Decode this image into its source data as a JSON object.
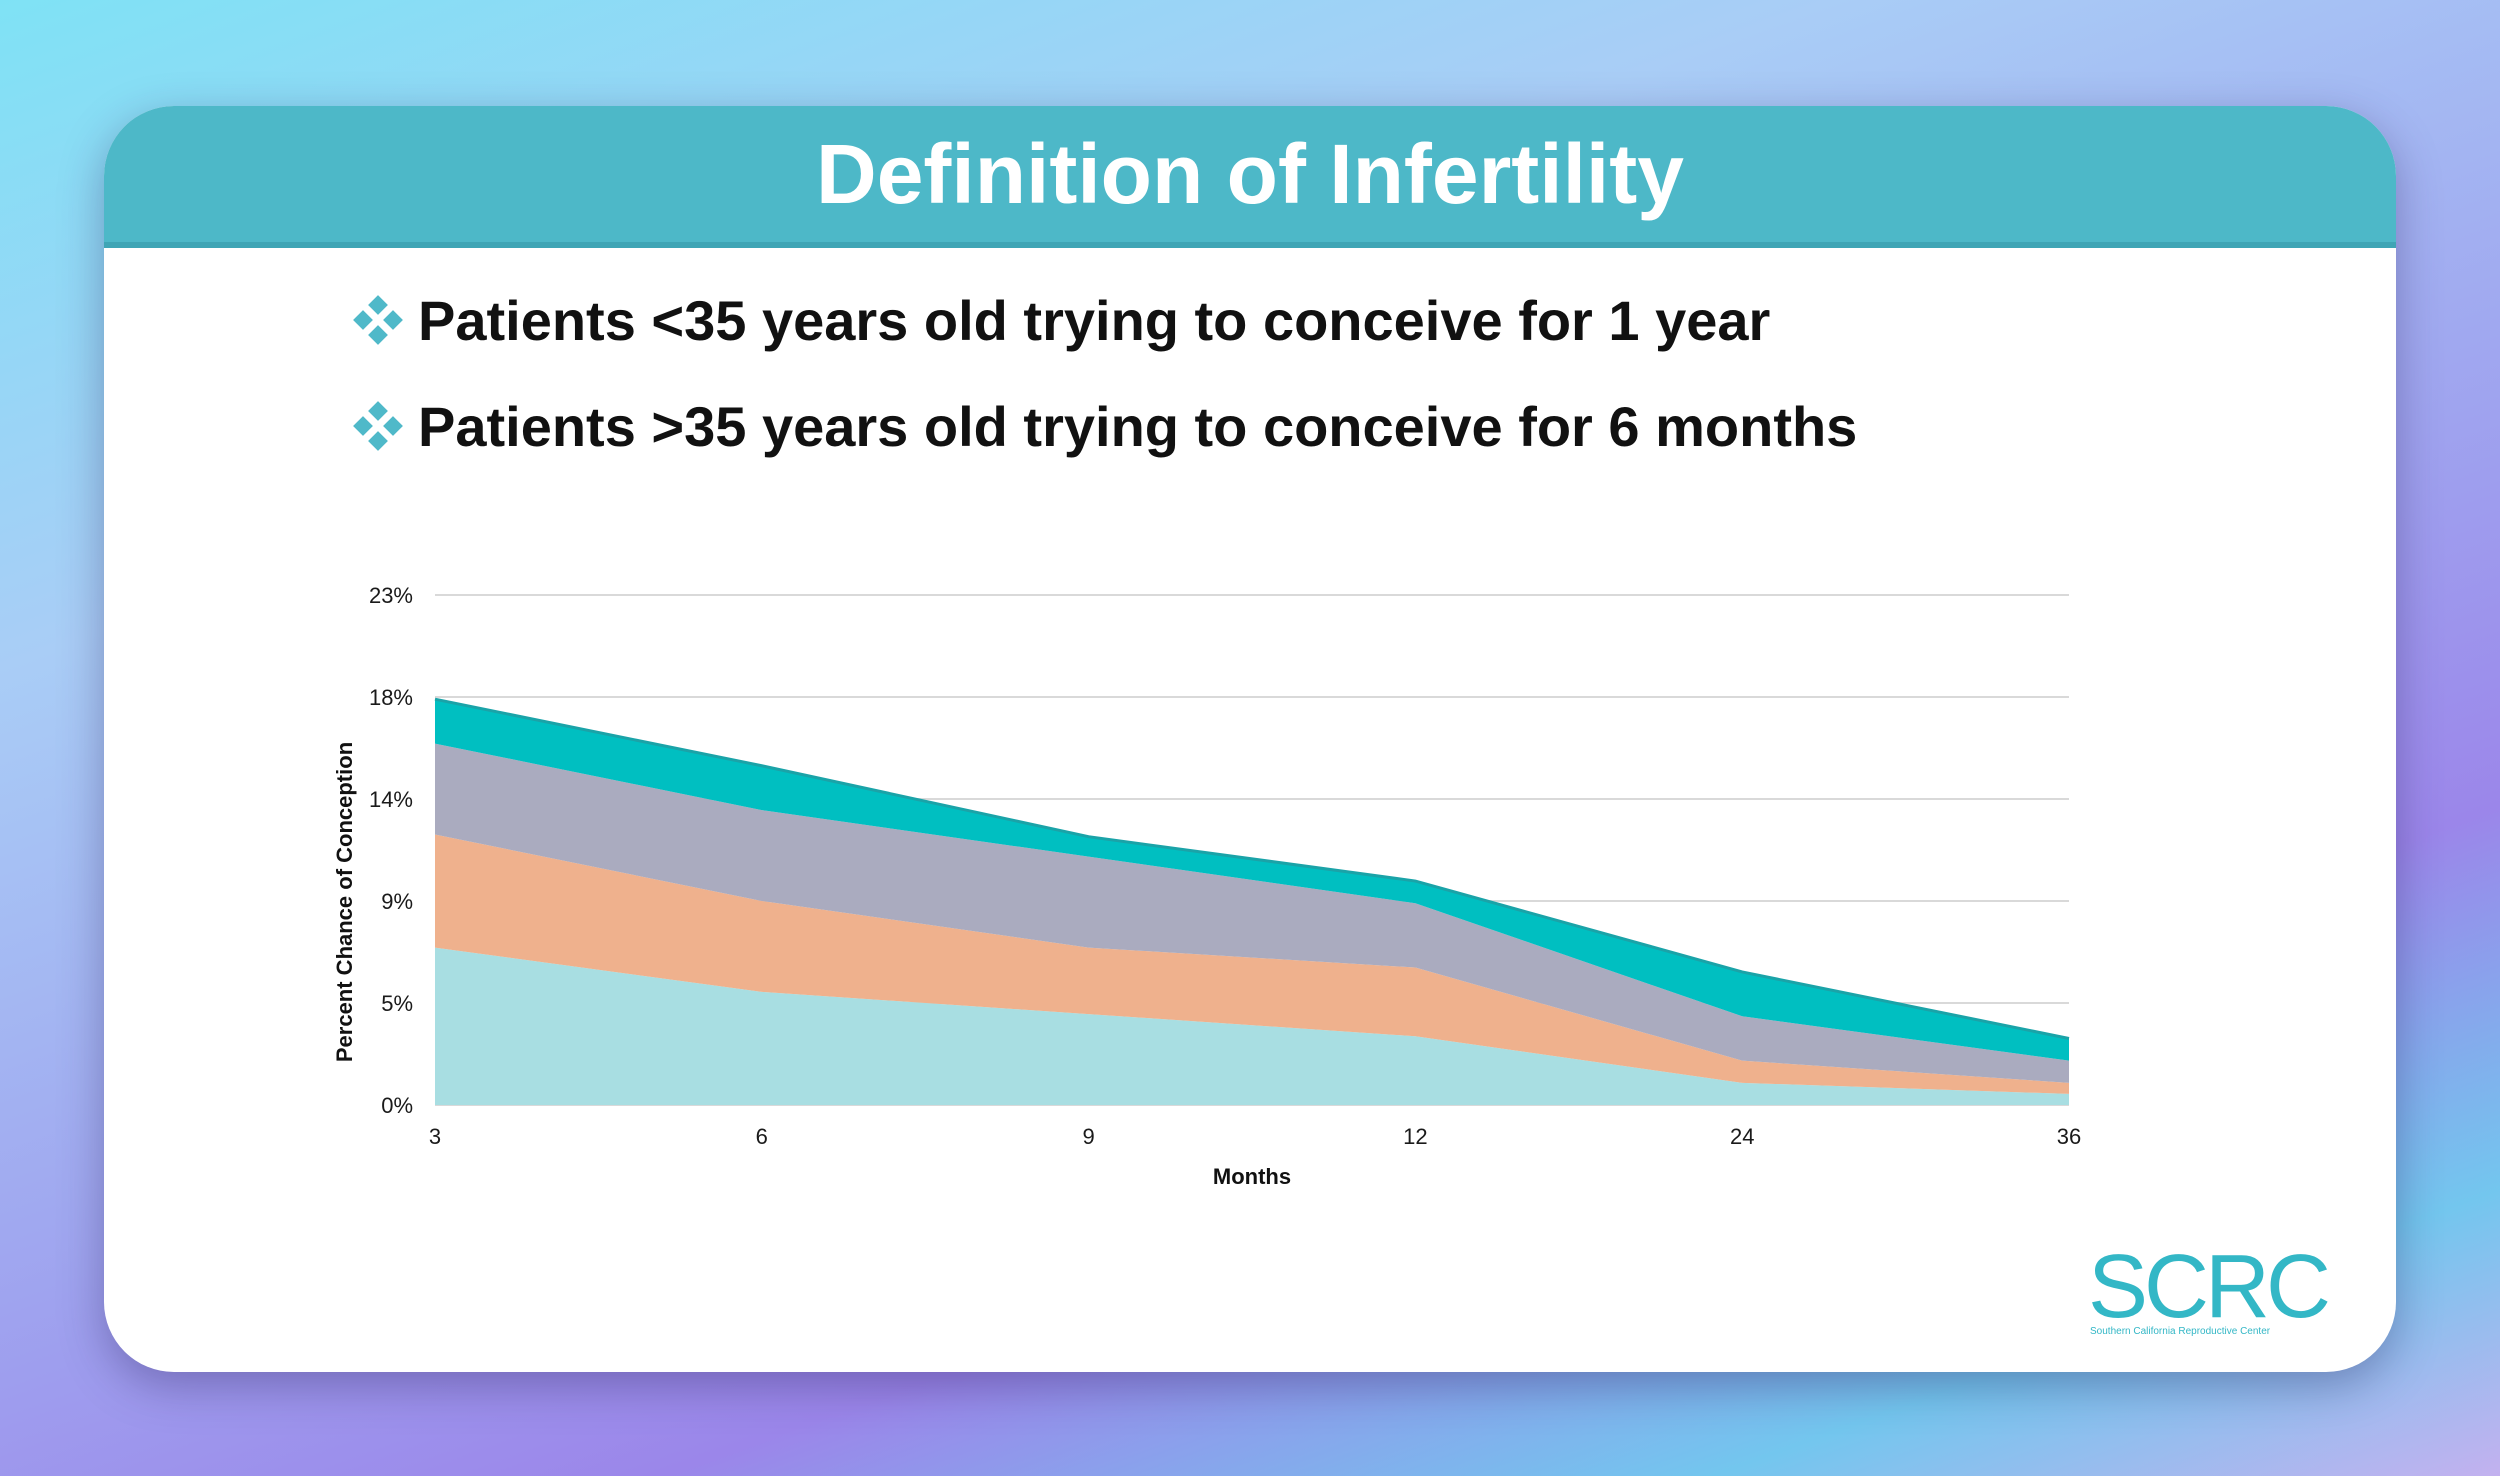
{
  "slide": {
    "title": "Definition of Infertility",
    "bullets": [
      "Patients <35 years old trying to conceive for 1 year",
      "Patients >35 years old trying to conceive for 6 months"
    ],
    "bullet_icon": "diamond-bullet-icon"
  },
  "logo": {
    "text": "SCRC",
    "subtitle": "Southern California Reproductive Center"
  },
  "colors": {
    "header": "#4db8c8",
    "bullet_icon": "#4fb9c9",
    "logo": "#33b7c6",
    "series": [
      "#a8dee2",
      "#efb18d",
      "#aaabbf",
      "#00bfc1"
    ]
  },
  "chart_data": {
    "type": "area",
    "stacked": true,
    "categories": [
      "3",
      "6",
      "9",
      "12",
      "24",
      "36"
    ],
    "xlabel": "Months",
    "ylabel": "Percent Chance of Conception",
    "yticks": [
      "0%",
      "5%",
      "9%",
      "14%",
      "18%",
      "23%"
    ],
    "ylim": [
      0,
      23
    ],
    "grid": true,
    "legend": "none",
    "series": [
      {
        "values": [
          7.1,
          5.1,
          4.1,
          3.1,
          1.0,
          0.5
        ],
        "color": "#a8dee2"
      },
      {
        "values": [
          5.1,
          4.1,
          3.0,
          3.1,
          1.0,
          0.5
        ],
        "color": "#efb18d"
      },
      {
        "values": [
          4.1,
          4.1,
          4.1,
          2.9,
          2.0,
          1.0
        ],
        "color": "#aaabbf"
      },
      {
        "values": [
          2.0,
          2.0,
          0.9,
          1.0,
          2.0,
          1.0
        ],
        "color": "#00bfc1"
      }
    ]
  }
}
